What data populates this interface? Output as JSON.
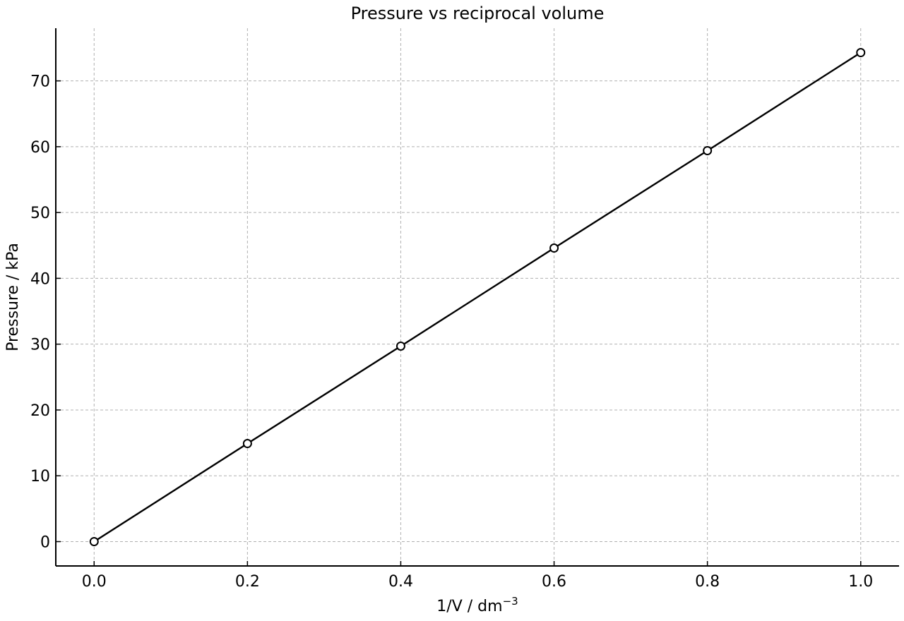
{
  "chart_data": {
    "type": "line",
    "title": "Pressure vs reciprocal volume",
    "xlabel": "1/V / dm",
    "xlabel_superscript": "−3",
    "ylabel": "Pressure / kPa",
    "xlim": [
      -0.05,
      1.05
    ],
    "ylim": [
      -3.7,
      78
    ],
    "xticks": [
      0.0,
      0.2,
      0.4,
      0.6,
      0.8,
      1.0
    ],
    "xtick_labels": [
      "0.0",
      "0.2",
      "0.4",
      "0.6",
      "0.8",
      "1.0"
    ],
    "yticks": [
      0,
      10,
      20,
      30,
      40,
      50,
      60,
      70
    ],
    "ytick_labels": [
      "0",
      "10",
      "20",
      "30",
      "40",
      "50",
      "60",
      "70"
    ],
    "grid": true,
    "series": [
      {
        "x": [
          0.0,
          0.2,
          0.4,
          0.6,
          0.8,
          1.0
        ],
        "y": [
          0.0,
          14.9,
          29.7,
          44.6,
          59.4,
          74.3
        ],
        "color": "#000000",
        "marker": "open-circle"
      }
    ]
  }
}
